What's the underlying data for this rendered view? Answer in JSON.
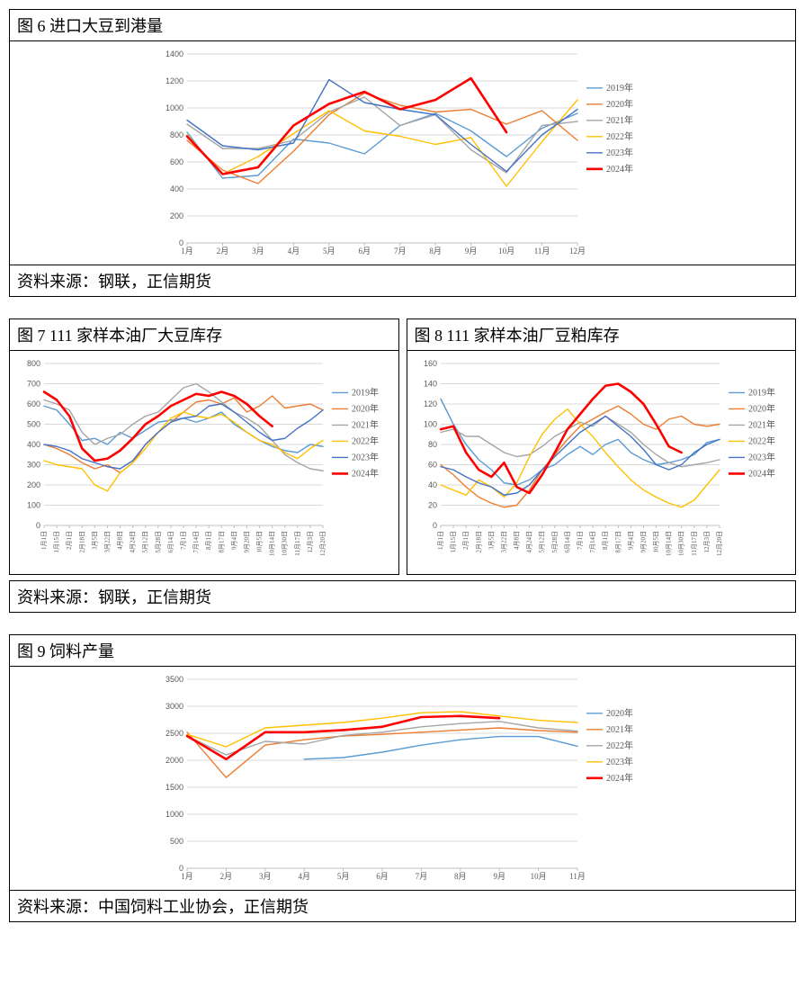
{
  "fig6": {
    "title": "图 6  进口大豆到港量",
    "footer": "资料来源：钢联，正信期货",
    "type": "line",
    "background_color": "#ffffff",
    "grid_color": "#d9d9d9",
    "x_labels": [
      "1月",
      "2月",
      "3月",
      "4月",
      "5月",
      "6月",
      "7月",
      "8月",
      "9月",
      "10月",
      "11月",
      "12月"
    ],
    "ylim": [
      0,
      1400
    ],
    "ytick_step": 200,
    "tick_fontsize": 9,
    "legend_fontsize": 10,
    "series": [
      {
        "name": "2019年",
        "color": "#5b9bd5",
        "width": 1.4,
        "values": [
          820,
          480,
          500,
          770,
          740,
          660,
          870,
          960,
          830,
          640,
          850,
          960
        ]
      },
      {
        "name": "2020年",
        "color": "#ed7d31",
        "width": 1.4,
        "values": [
          760,
          540,
          440,
          680,
          950,
          1110,
          1020,
          970,
          990,
          880,
          980,
          760
        ]
      },
      {
        "name": "2021年",
        "color": "#a5a5a5",
        "width": 1.4,
        "values": [
          880,
          700,
          700,
          760,
          970,
          1080,
          870,
          950,
          690,
          520,
          870,
          900
        ]
      },
      {
        "name": "2022年",
        "color": "#ffc000",
        "width": 1.4,
        "values": [
          800,
          510,
          640,
          810,
          980,
          830,
          790,
          730,
          780,
          420,
          750,
          1060
        ]
      },
      {
        "name": "2023年",
        "color": "#4472c4",
        "width": 1.4,
        "values": [
          910,
          720,
          690,
          740,
          1210,
          1040,
          990,
          950,
          730,
          530,
          800,
          990
        ]
      },
      {
        "name": "2024年",
        "color": "#ff0000",
        "width": 2.6,
        "values": [
          790,
          510,
          560,
          870,
          1030,
          1120,
          990,
          1060,
          1220,
          820,
          null,
          null
        ]
      }
    ]
  },
  "fig7": {
    "title": "图 7   111 家样本油厂大豆库存",
    "type": "line",
    "background_color": "#ffffff",
    "grid_color": "#d9d9d9",
    "x_labels": [
      "1月1日",
      "1月15日",
      "2月1日",
      "2月18日",
      "3月5日",
      "3月22日",
      "4月8日",
      "4月24日",
      "5月12日",
      "5月28日",
      "6月14日",
      "7月1日",
      "7月14日",
      "8月1日",
      "8月17日",
      "9月4日",
      "9月20日",
      "10月5日",
      "10月14日",
      "10月30日",
      "11月17日",
      "12月3日",
      "12月20日"
    ],
    "ylim": [
      0,
      800
    ],
    "ytick_step": 100,
    "series": [
      {
        "name": "2019年",
        "color": "#5b9bd5",
        "width": 1.4,
        "values": [
          590,
          570,
          500,
          420,
          430,
          400,
          460,
          430,
          470,
          510,
          520,
          530,
          510,
          530,
          560,
          500,
          460,
          420,
          390,
          370,
          360,
          400,
          390
        ]
      },
      {
        "name": "2020年",
        "color": "#ed7d31",
        "width": 1.4,
        "values": [
          400,
          380,
          350,
          310,
          280,
          300,
          260,
          310,
          400,
          460,
          510,
          560,
          610,
          620,
          600,
          630,
          560,
          590,
          640,
          580,
          590,
          600,
          570
        ]
      },
      {
        "name": "2021年",
        "color": "#a5a5a5",
        "width": 1.4,
        "values": [
          620,
          600,
          570,
          460,
          400,
          430,
          450,
          500,
          540,
          560,
          620,
          680,
          700,
          660,
          610,
          560,
          530,
          490,
          420,
          350,
          310,
          280,
          270
        ]
      },
      {
        "name": "2022年",
        "color": "#ffc000",
        "width": 1.4,
        "values": [
          320,
          300,
          290,
          280,
          200,
          170,
          260,
          310,
          380,
          460,
          530,
          560,
          540,
          530,
          550,
          510,
          460,
          420,
          400,
          360,
          330,
          380,
          420
        ]
      },
      {
        "name": "2023年",
        "color": "#4472c4",
        "width": 1.4,
        "values": [
          400,
          390,
          370,
          330,
          310,
          290,
          280,
          320,
          400,
          460,
          510,
          530,
          540,
          590,
          600,
          560,
          510,
          460,
          420,
          430,
          480,
          520,
          570
        ]
      },
      {
        "name": "2024年",
        "color": "#ff0000",
        "width": 2.6,
        "values": [
          660,
          620,
          540,
          380,
          320,
          330,
          370,
          430,
          500,
          540,
          590,
          620,
          650,
          640,
          660,
          640,
          600,
          540,
          490,
          null,
          null,
          null,
          null
        ]
      }
    ]
  },
  "fig8": {
    "title": "图 8  111 家样本油厂豆粕库存",
    "type": "line",
    "background_color": "#ffffff",
    "grid_color": "#d9d9d9",
    "x_labels": [
      "1月1日",
      "1月15日",
      "2月1日",
      "2月18日",
      "3月5日",
      "3月22日",
      "4月8日",
      "4月24日",
      "5月12日",
      "5月28日",
      "6月14日",
      "7月1日",
      "7月14日",
      "8月1日",
      "8月17日",
      "9月4日",
      "9月20日",
      "10月5日",
      "10月14日",
      "10月30日",
      "11月17日",
      "12月3日",
      "12月20日"
    ],
    "ylim": [
      0,
      160
    ],
    "ytick_step": 20,
    "series": [
      {
        "name": "2019年",
        "color": "#5b9bd5",
        "width": 1.4,
        "values": [
          125,
          100,
          80,
          65,
          55,
          42,
          40,
          45,
          55,
          60,
          70,
          78,
          70,
          80,
          85,
          72,
          65,
          60,
          62,
          65,
          70,
          82,
          85
        ]
      },
      {
        "name": "2020年",
        "color": "#ed7d31",
        "width": 1.4,
        "values": [
          60,
          50,
          38,
          28,
          22,
          18,
          20,
          35,
          55,
          70,
          85,
          98,
          105,
          112,
          118,
          110,
          100,
          95,
          105,
          108,
          100,
          98,
          100
        ]
      },
      {
        "name": "2021年",
        "color": "#a5a5a5",
        "width": 1.4,
        "values": [
          92,
          95,
          88,
          88,
          80,
          72,
          68,
          70,
          78,
          88,
          95,
          102,
          98,
          108,
          100,
          92,
          80,
          70,
          62,
          58,
          60,
          62,
          65
        ]
      },
      {
        "name": "2022年",
        "color": "#ffc000",
        "width": 1.4,
        "values": [
          40,
          35,
          30,
          45,
          38,
          28,
          42,
          68,
          90,
          105,
          115,
          100,
          88,
          72,
          58,
          45,
          35,
          28,
          22,
          18,
          25,
          40,
          55
        ]
      },
      {
        "name": "2023年",
        "color": "#4472c4",
        "width": 1.4,
        "values": [
          58,
          55,
          48,
          42,
          38,
          30,
          32,
          40,
          55,
          68,
          80,
          92,
          100,
          108,
          98,
          88,
          75,
          60,
          55,
          60,
          72,
          80,
          85
        ]
      },
      {
        "name": "2024年",
        "color": "#ff0000",
        "width": 2.6,
        "values": [
          95,
          98,
          72,
          55,
          48,
          62,
          38,
          32,
          50,
          72,
          95,
          110,
          125,
          138,
          140,
          132,
          120,
          100,
          78,
          72,
          null,
          null,
          null
        ]
      }
    ]
  },
  "pair_footer": "资料来源：钢联，正信期货",
  "fig9": {
    "title": "图 9  饲料产量",
    "footer": "资料来源：中国饲料工业协会，正信期货",
    "type": "line",
    "background_color": "#ffffff",
    "grid_color": "#d9d9d9",
    "x_labels": [
      "1月",
      "2月",
      "3月",
      "4月",
      "5月",
      "6月",
      "7月",
      "8月",
      "9月",
      "10月",
      "11月"
    ],
    "ylim": [
      0,
      3500
    ],
    "ytick_step": 500,
    "series": [
      {
        "name": "2020年",
        "color": "#5b9bd5",
        "width": 1.4,
        "values": [
          null,
          null,
          null,
          2020,
          2050,
          2150,
          2280,
          2380,
          2440,
          2440,
          2260
        ]
      },
      {
        "name": "2021年",
        "color": "#ed7d31",
        "width": 1.4,
        "values": [
          2520,
          1680,
          2280,
          2380,
          2450,
          2480,
          2520,
          2560,
          2600,
          2550,
          2520
        ]
      },
      {
        "name": "2022年",
        "color": "#a5a5a5",
        "width": 1.4,
        "values": [
          2450,
          2100,
          2350,
          2300,
          2460,
          2520,
          2620,
          2680,
          2720,
          2600,
          2540
        ]
      },
      {
        "name": "2023年",
        "color": "#ffc000",
        "width": 1.4,
        "values": [
          2480,
          2250,
          2600,
          2650,
          2700,
          2780,
          2880,
          2900,
          2820,
          2740,
          2700
        ]
      },
      {
        "name": "2024年",
        "color": "#ff0000",
        "width": 2.6,
        "values": [
          2450,
          2020,
          2520,
          2520,
          2560,
          2620,
          2800,
          2820,
          2780,
          null,
          null
        ]
      }
    ]
  }
}
